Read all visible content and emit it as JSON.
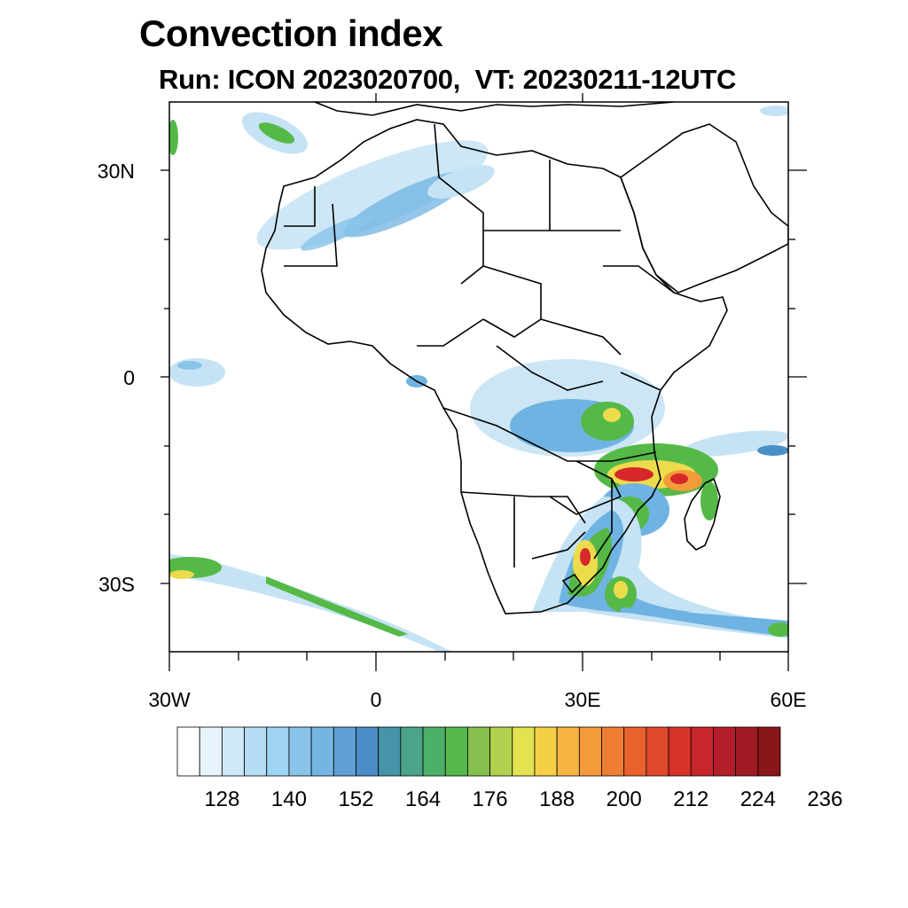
{
  "header": {
    "title": "Convection index",
    "subtitle_run": "Run: ICON 2023020700,",
    "subtitle_vt": "VT: 20230211-12UTC"
  },
  "map": {
    "region": "Africa",
    "lon_range": [
      -30,
      60
    ],
    "lat_range": [
      -40,
      40
    ],
    "y_axis_labels": [
      "30N",
      "0",
      "30S"
    ],
    "x_axis_labels": [
      "30W",
      "0",
      "30E",
      "60E"
    ],
    "colors": {
      "coast": "#000000",
      "light_blue": "#c6e3f5",
      "mid_blue": "#6fb3e2",
      "blue": "#4a90c8",
      "teal": "#3f9e8e",
      "green": "#55b947",
      "yellow": "#ecdc4c",
      "orange": "#f39a3a",
      "red": "#d7282a"
    }
  },
  "colorbar": {
    "colors": [
      "#ffffff",
      "#e8f4fb",
      "#cde8f7",
      "#b5ddf4",
      "#9fd4f3",
      "#8ac4ea",
      "#75b4e3",
      "#5f9fd6",
      "#4b8cc9",
      "#4793a8",
      "#4aa38a",
      "#4cb06a",
      "#55b84d",
      "#85c04e",
      "#b3d14f",
      "#e3e250",
      "#f4d046",
      "#f6b443",
      "#f49a3b",
      "#ef7d33",
      "#e9622d",
      "#e04a2b",
      "#d8332b",
      "#c8252c",
      "#b41e2b",
      "#a11b26",
      "#8a1619"
    ],
    "labels": [
      "128",
      "140",
      "152",
      "164",
      "176",
      "188",
      "200",
      "212",
      "224",
      "236"
    ]
  }
}
